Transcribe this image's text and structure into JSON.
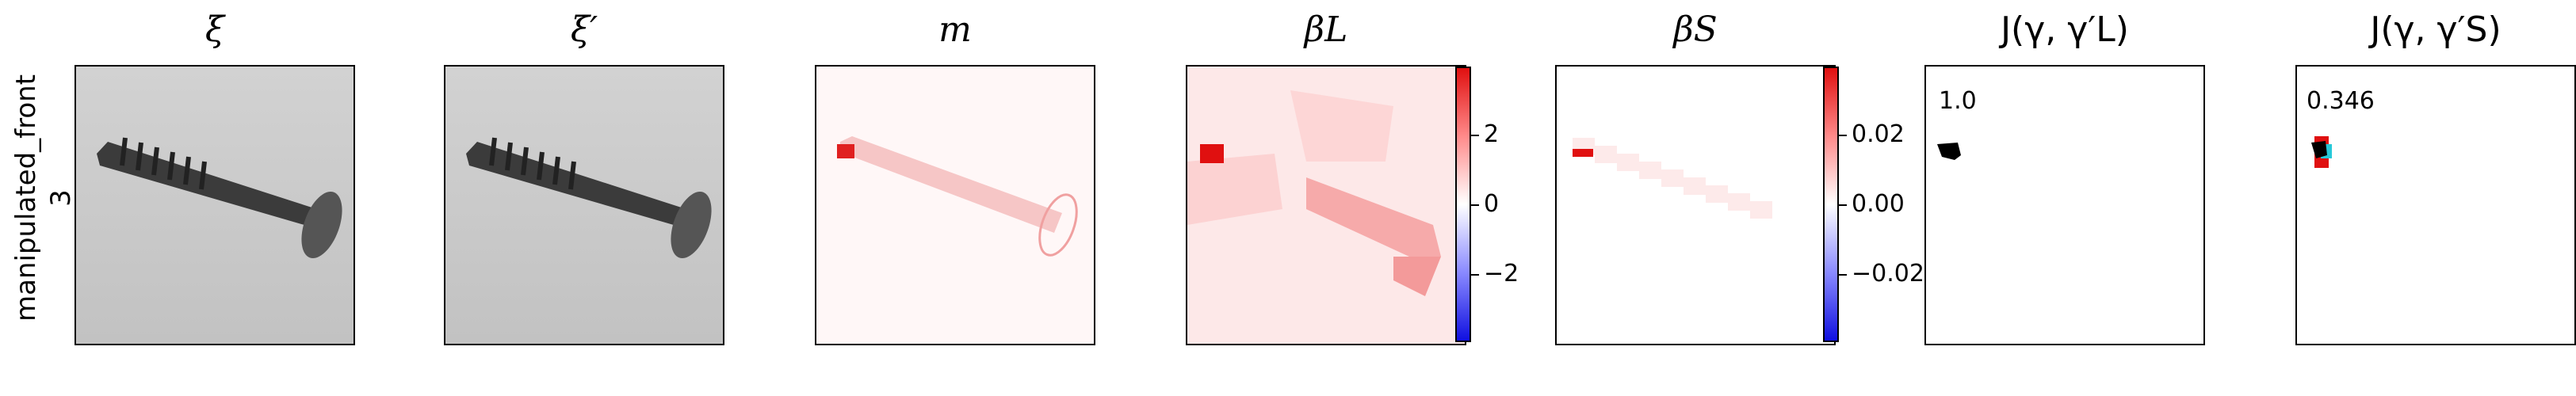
{
  "row_label": "manipulated_front\n3",
  "panels": [
    {
      "title": "ξ"
    },
    {
      "title": "ξ′"
    },
    {
      "title": "m"
    },
    {
      "title": "βL"
    },
    {
      "title": "βS"
    },
    {
      "title": "J(γ, γ′L)"
    },
    {
      "title": "J(γ, γ′S)"
    }
  ],
  "colorbars": {
    "beta_L": {
      "ticks": [
        "2",
        "0",
        "−2"
      ]
    },
    "beta_S": {
      "ticks": [
        "0.02",
        "0.00",
        "−0.02"
      ]
    }
  },
  "jaccard": {
    "L_value": "1.0",
    "S_value": "0.346"
  },
  "colors": {
    "positive": "#e01010",
    "negative": "#1010e0",
    "overlay_cyan": "#27c9d9",
    "image_gray": "#c9c9c9"
  }
}
